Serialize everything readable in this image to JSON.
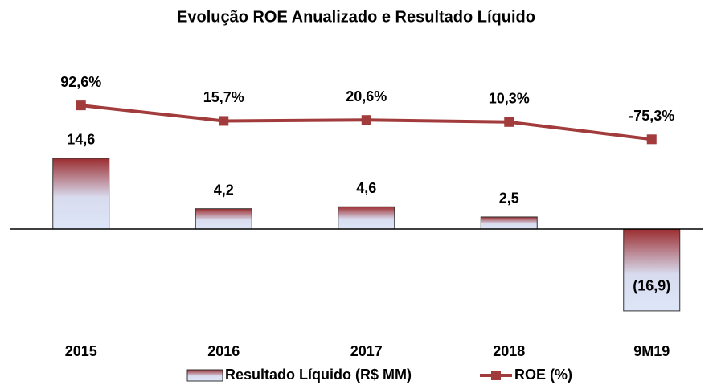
{
  "chart_data": {
    "type": "bar",
    "title": "Evolução ROE Anualizado e Resultado Líquido",
    "categories": [
      "2015",
      "2016",
      "2017",
      "2018",
      "9M19"
    ],
    "series": [
      {
        "name": "Resultado Líquido (R$ MM)",
        "type": "bar",
        "color": "#9b2d30",
        "values": [
          14.6,
          4.2,
          4.6,
          2.5,
          -16.9
        ],
        "value_labels": [
          "14,6",
          "4,2",
          "4,6",
          "2,5",
          "(16,9)"
        ]
      },
      {
        "name": "ROE (%)",
        "type": "line",
        "axis": "y2",
        "color": "#a23b3b",
        "values": [
          92.6,
          15.7,
          20.6,
          10.3,
          -75.3
        ],
        "value_labels": [
          "92,6%",
          "15,7%",
          "20,6%",
          "10,3%",
          "-75,3%"
        ]
      }
    ],
    "ylim": [
      -20,
      35
    ],
    "y2lim": [
      -1000,
      320
    ],
    "legend": "bottom"
  }
}
